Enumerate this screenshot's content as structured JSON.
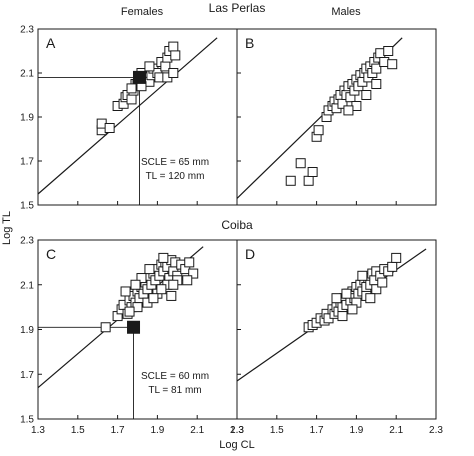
{
  "figure": {
    "top_title": "Las Perlas",
    "mid_title": "Coiba",
    "col_titles": [
      "Females",
      "Males"
    ],
    "ylabel": "Log TL",
    "xlabel": "Log CL"
  },
  "chart_data": [
    {
      "panel": "A",
      "type": "scatter",
      "xlim": [
        1.3,
        2.3
      ],
      "ylim": [
        1.5,
        2.3
      ],
      "x_ticks": [
        "1.3",
        "1.5",
        "1.7",
        "1.9",
        "2.1",
        "2.3"
      ],
      "y_ticks": [
        "1.5",
        "1.7",
        "1.9",
        "2.1",
        "2.3"
      ],
      "show_x_tick_labels": false,
      "show_y_tick_labels": true,
      "fit_line": [
        [
          1.3,
          1.55
        ],
        [
          2.2,
          2.26
        ]
      ],
      "annotation": [
        "SCLE = 65 mm",
        "TL = 120 mm"
      ],
      "highlight": {
        "x": 1.81,
        "y": 2.08
      },
      "points": [
        [
          1.62,
          1.84
        ],
        [
          1.62,
          1.87
        ],
        [
          1.66,
          1.85
        ],
        [
          1.7,
          1.95
        ],
        [
          1.73,
          1.96
        ],
        [
          1.74,
          1.99
        ],
        [
          1.75,
          2.0
        ],
        [
          1.77,
          1.98
        ],
        [
          1.78,
          2.02
        ],
        [
          1.79,
          2.05
        ],
        [
          1.8,
          2.05
        ],
        [
          1.81,
          2.07
        ],
        [
          1.82,
          2.1
        ],
        [
          1.84,
          2.08
        ],
        [
          1.86,
          2.06
        ],
        [
          1.87,
          2.09
        ],
        [
          1.88,
          2.12
        ],
        [
          1.9,
          2.1
        ],
        [
          1.92,
          2.15
        ],
        [
          1.94,
          2.13
        ],
        [
          1.95,
          2.17
        ],
        [
          1.96,
          2.2
        ],
        [
          1.98,
          2.22
        ],
        [
          1.99,
          2.18
        ],
        [
          1.86,
          2.13
        ],
        [
          1.91,
          2.08
        ],
        [
          1.95,
          2.08
        ],
        [
          1.98,
          2.1
        ],
        [
          1.82,
          2.04
        ],
        [
          1.77,
          2.03
        ]
      ]
    },
    {
      "panel": "B",
      "type": "scatter",
      "xlim": [
        1.3,
        2.3
      ],
      "ylim": [
        1.5,
        2.3
      ],
      "x_ticks": [
        "1.3",
        "1.5",
        "1.7",
        "1.9",
        "2.1",
        "2.3"
      ],
      "y_ticks": [
        "1.5",
        "1.7",
        "1.9",
        "2.1",
        "2.3"
      ],
      "show_x_tick_labels": false,
      "show_y_tick_labels": false,
      "fit_line": [
        [
          1.3,
          1.53
        ],
        [
          2.13,
          2.26
        ]
      ],
      "points": [
        [
          1.57,
          1.61
        ],
        [
          1.62,
          1.69
        ],
        [
          1.66,
          1.61
        ],
        [
          1.68,
          1.65
        ],
        [
          1.7,
          1.81
        ],
        [
          1.71,
          1.84
        ],
        [
          1.75,
          1.9
        ],
        [
          1.76,
          1.93
        ],
        [
          1.78,
          1.95
        ],
        [
          1.79,
          1.97
        ],
        [
          1.8,
          1.94
        ],
        [
          1.81,
          1.98
        ],
        [
          1.82,
          2.0
        ],
        [
          1.83,
          1.96
        ],
        [
          1.84,
          2.02
        ],
        [
          1.85,
          2.0
        ],
        [
          1.86,
          2.04
        ],
        [
          1.87,
          1.99
        ],
        [
          1.88,
          2.05
        ],
        [
          1.89,
          2.02
        ],
        [
          1.9,
          2.07
        ],
        [
          1.91,
          2.04
        ],
        [
          1.92,
          2.09
        ],
        [
          1.93,
          2.06
        ],
        [
          1.94,
          2.1
        ],
        [
          1.95,
          2.12
        ],
        [
          1.96,
          2.08
        ],
        [
          1.97,
          2.13
        ],
        [
          1.98,
          2.1
        ],
        [
          1.99,
          2.15
        ],
        [
          2.0,
          2.12
        ],
        [
          2.01,
          2.17
        ],
        [
          2.02,
          2.19
        ],
        [
          2.04,
          2.15
        ],
        [
          2.06,
          2.2
        ],
        [
          2.08,
          2.14
        ],
        [
          1.9,
          1.95
        ],
        [
          1.95,
          2.0
        ],
        [
          2.0,
          2.05
        ],
        [
          1.86,
          1.93
        ]
      ]
    },
    {
      "panel": "C",
      "type": "scatter",
      "xlim": [
        1.3,
        2.3
      ],
      "ylim": [
        1.5,
        2.3
      ],
      "x_ticks": [
        "1.3",
        "1.5",
        "1.7",
        "1.9",
        "2.1",
        "2.3"
      ],
      "y_ticks": [
        "1.5",
        "1.7",
        "1.9",
        "2.1",
        "2.3"
      ],
      "show_x_tick_labels": true,
      "show_y_tick_labels": true,
      "fit_line": [
        [
          1.3,
          1.64
        ],
        [
          2.13,
          2.27
        ]
      ],
      "annotation": [
        "SCLE = 60 mm",
        "TL = 81 mm"
      ],
      "highlight": {
        "x": 1.78,
        "y": 1.91
      },
      "points": [
        [
          1.64,
          1.91
        ],
        [
          1.7,
          1.96
        ],
        [
          1.72,
          1.99
        ],
        [
          1.73,
          2.01
        ],
        [
          1.75,
          1.97
        ],
        [
          1.76,
          2.03
        ],
        [
          1.77,
          2.0
        ],
        [
          1.78,
          2.05
        ],
        [
          1.79,
          2.02
        ],
        [
          1.8,
          2.07
        ],
        [
          1.81,
          2.04
        ],
        [
          1.82,
          2.09
        ],
        [
          1.83,
          2.06
        ],
        [
          1.84,
          2.11
        ],
        [
          1.85,
          2.08
        ],
        [
          1.86,
          2.13
        ],
        [
          1.87,
          2.1
        ],
        [
          1.88,
          2.15
        ],
        [
          1.89,
          2.12
        ],
        [
          1.9,
          2.17
        ],
        [
          1.91,
          2.14
        ],
        [
          1.92,
          2.19
        ],
        [
          1.93,
          2.16
        ],
        [
          1.94,
          2.2
        ],
        [
          1.95,
          2.18
        ],
        [
          1.96,
          2.13
        ],
        [
          1.97,
          2.21
        ],
        [
          1.98,
          2.16
        ],
        [
          1.99,
          2.2
        ],
        [
          2.0,
          2.14
        ],
        [
          2.02,
          2.19
        ],
        [
          2.04,
          2.17
        ],
        [
          2.06,
          2.2
        ],
        [
          2.08,
          2.15
        ],
        [
          1.8,
          2.0
        ],
        [
          1.85,
          2.02
        ],
        [
          1.9,
          2.06
        ],
        [
          1.95,
          2.1
        ],
        [
          2.0,
          2.12
        ],
        [
          1.76,
          1.98
        ],
        [
          1.86,
          2.17
        ],
        [
          1.92,
          2.08
        ],
        [
          1.97,
          2.05
        ],
        [
          1.74,
          2.07
        ],
        [
          1.82,
          2.13
        ],
        [
          1.88,
          2.04
        ],
        [
          1.93,
          2.22
        ],
        [
          1.98,
          2.1
        ],
        [
          2.05,
          2.12
        ],
        [
          1.79,
          2.1
        ]
      ]
    },
    {
      "panel": "D",
      "type": "scatter",
      "xlim": [
        1.3,
        2.3
      ],
      "ylim": [
        1.5,
        2.3
      ],
      "x_ticks": [
        "1.3",
        "1.5",
        "1.7",
        "1.9",
        "2.1",
        "2.3"
      ],
      "y_ticks": [
        "1.5",
        "1.7",
        "1.9",
        "2.1",
        "2.3"
      ],
      "show_x_tick_labels": true,
      "show_y_tick_labels": false,
      "fit_line": [
        [
          1.3,
          1.67
        ],
        [
          2.25,
          2.26
        ]
      ],
      "points": [
        [
          1.66,
          1.91
        ],
        [
          1.68,
          1.92
        ],
        [
          1.7,
          1.93
        ],
        [
          1.72,
          1.95
        ],
        [
          1.74,
          1.94
        ],
        [
          1.75,
          1.97
        ],
        [
          1.76,
          1.95
        ],
        [
          1.78,
          1.99
        ],
        [
          1.79,
          1.97
        ],
        [
          1.8,
          2.0
        ],
        [
          1.81,
          1.98
        ],
        [
          1.82,
          2.02
        ],
        [
          1.83,
          2.0
        ],
        [
          1.84,
          2.04
        ],
        [
          1.85,
          2.01
        ],
        [
          1.86,
          2.06
        ],
        [
          1.87,
          2.03
        ],
        [
          1.88,
          2.07
        ],
        [
          1.89,
          2.04
        ],
        [
          1.9,
          2.09
        ],
        [
          1.91,
          2.06
        ],
        [
          1.92,
          2.1
        ],
        [
          1.93,
          2.07
        ],
        [
          1.94,
          2.12
        ],
        [
          1.95,
          2.09
        ],
        [
          1.96,
          2.13
        ],
        [
          1.97,
          2.1
        ],
        [
          1.98,
          2.15
        ],
        [
          1.99,
          2.12
        ],
        [
          2.0,
          2.16
        ],
        [
          2.02,
          2.14
        ],
        [
          2.04,
          2.17
        ],
        [
          2.06,
          2.16
        ],
        [
          2.08,
          2.18
        ],
        [
          2.1,
          2.22
        ],
        [
          1.8,
          2.04
        ],
        [
          1.85,
          2.06
        ],
        [
          1.9,
          2.02
        ],
        [
          1.95,
          2.05
        ],
        [
          2.0,
          2.08
        ],
        [
          1.83,
          1.96
        ],
        [
          1.88,
          1.99
        ],
        [
          1.93,
          2.14
        ],
        [
          1.97,
          2.04
        ],
        [
          2.03,
          2.11
        ]
      ]
    }
  ]
}
